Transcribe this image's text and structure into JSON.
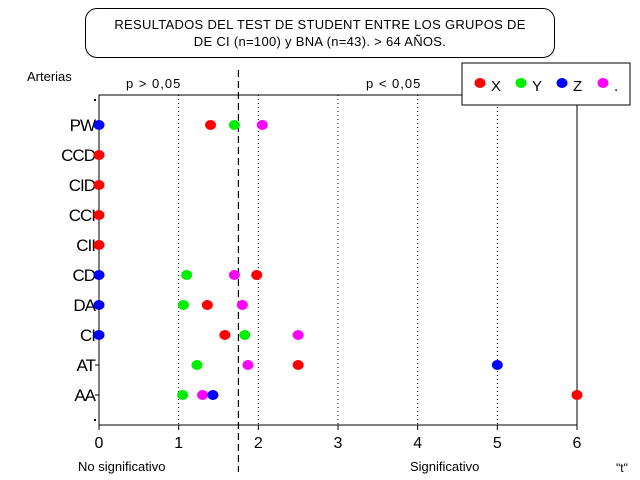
{
  "chart_data": {
    "type": "scatter",
    "title_line1": "RESULTADOS DEL TEST DE STUDENT ENTRE LOS GRUPOS DE",
    "title_line2": "DE CI (n=100) y BNA (n=43). > 64 AÑOS.",
    "ylabel": "Arterias",
    "xlabel": "\"t\"",
    "xlim": [
      0,
      6
    ],
    "xticks": [
      0,
      1,
      2,
      3,
      4,
      5,
      6
    ],
    "categories": [
      "PW",
      "CCD",
      "CID",
      "CCI",
      "CII",
      "CD",
      "DA",
      "CI",
      "AT",
      "AA"
    ],
    "grid_lines_x": [
      1,
      2,
      3,
      4,
      5
    ],
    "threshold_x": 1.75,
    "region_labels": {
      "left": "p > 0,05",
      "right": "p < 0,05"
    },
    "bottom_labels": {
      "left": "No significativo",
      "right": "Significativo"
    },
    "legend_position": "top-right",
    "series": [
      {
        "name": "X",
        "color": "#ff0000",
        "values": [
          1.4,
          0,
          0,
          0,
          0,
          1.98,
          1.36,
          1.58,
          2.5,
          6.0
        ]
      },
      {
        "name": "Y",
        "color": "#00ee00",
        "values": [
          1.7,
          null,
          null,
          null,
          null,
          1.1,
          1.06,
          1.83,
          1.23,
          1.05
        ]
      },
      {
        "name": "Z",
        "color": "#0000ff",
        "values": [
          0,
          null,
          null,
          null,
          null,
          0,
          0,
          0,
          5.0,
          1.43
        ]
      },
      {
        "name": ".",
        "color": "#ff00ff",
        "values": [
          2.05,
          null,
          null,
          null,
          null,
          1.7,
          1.8,
          2.5,
          1.87,
          1.3
        ]
      }
    ]
  }
}
